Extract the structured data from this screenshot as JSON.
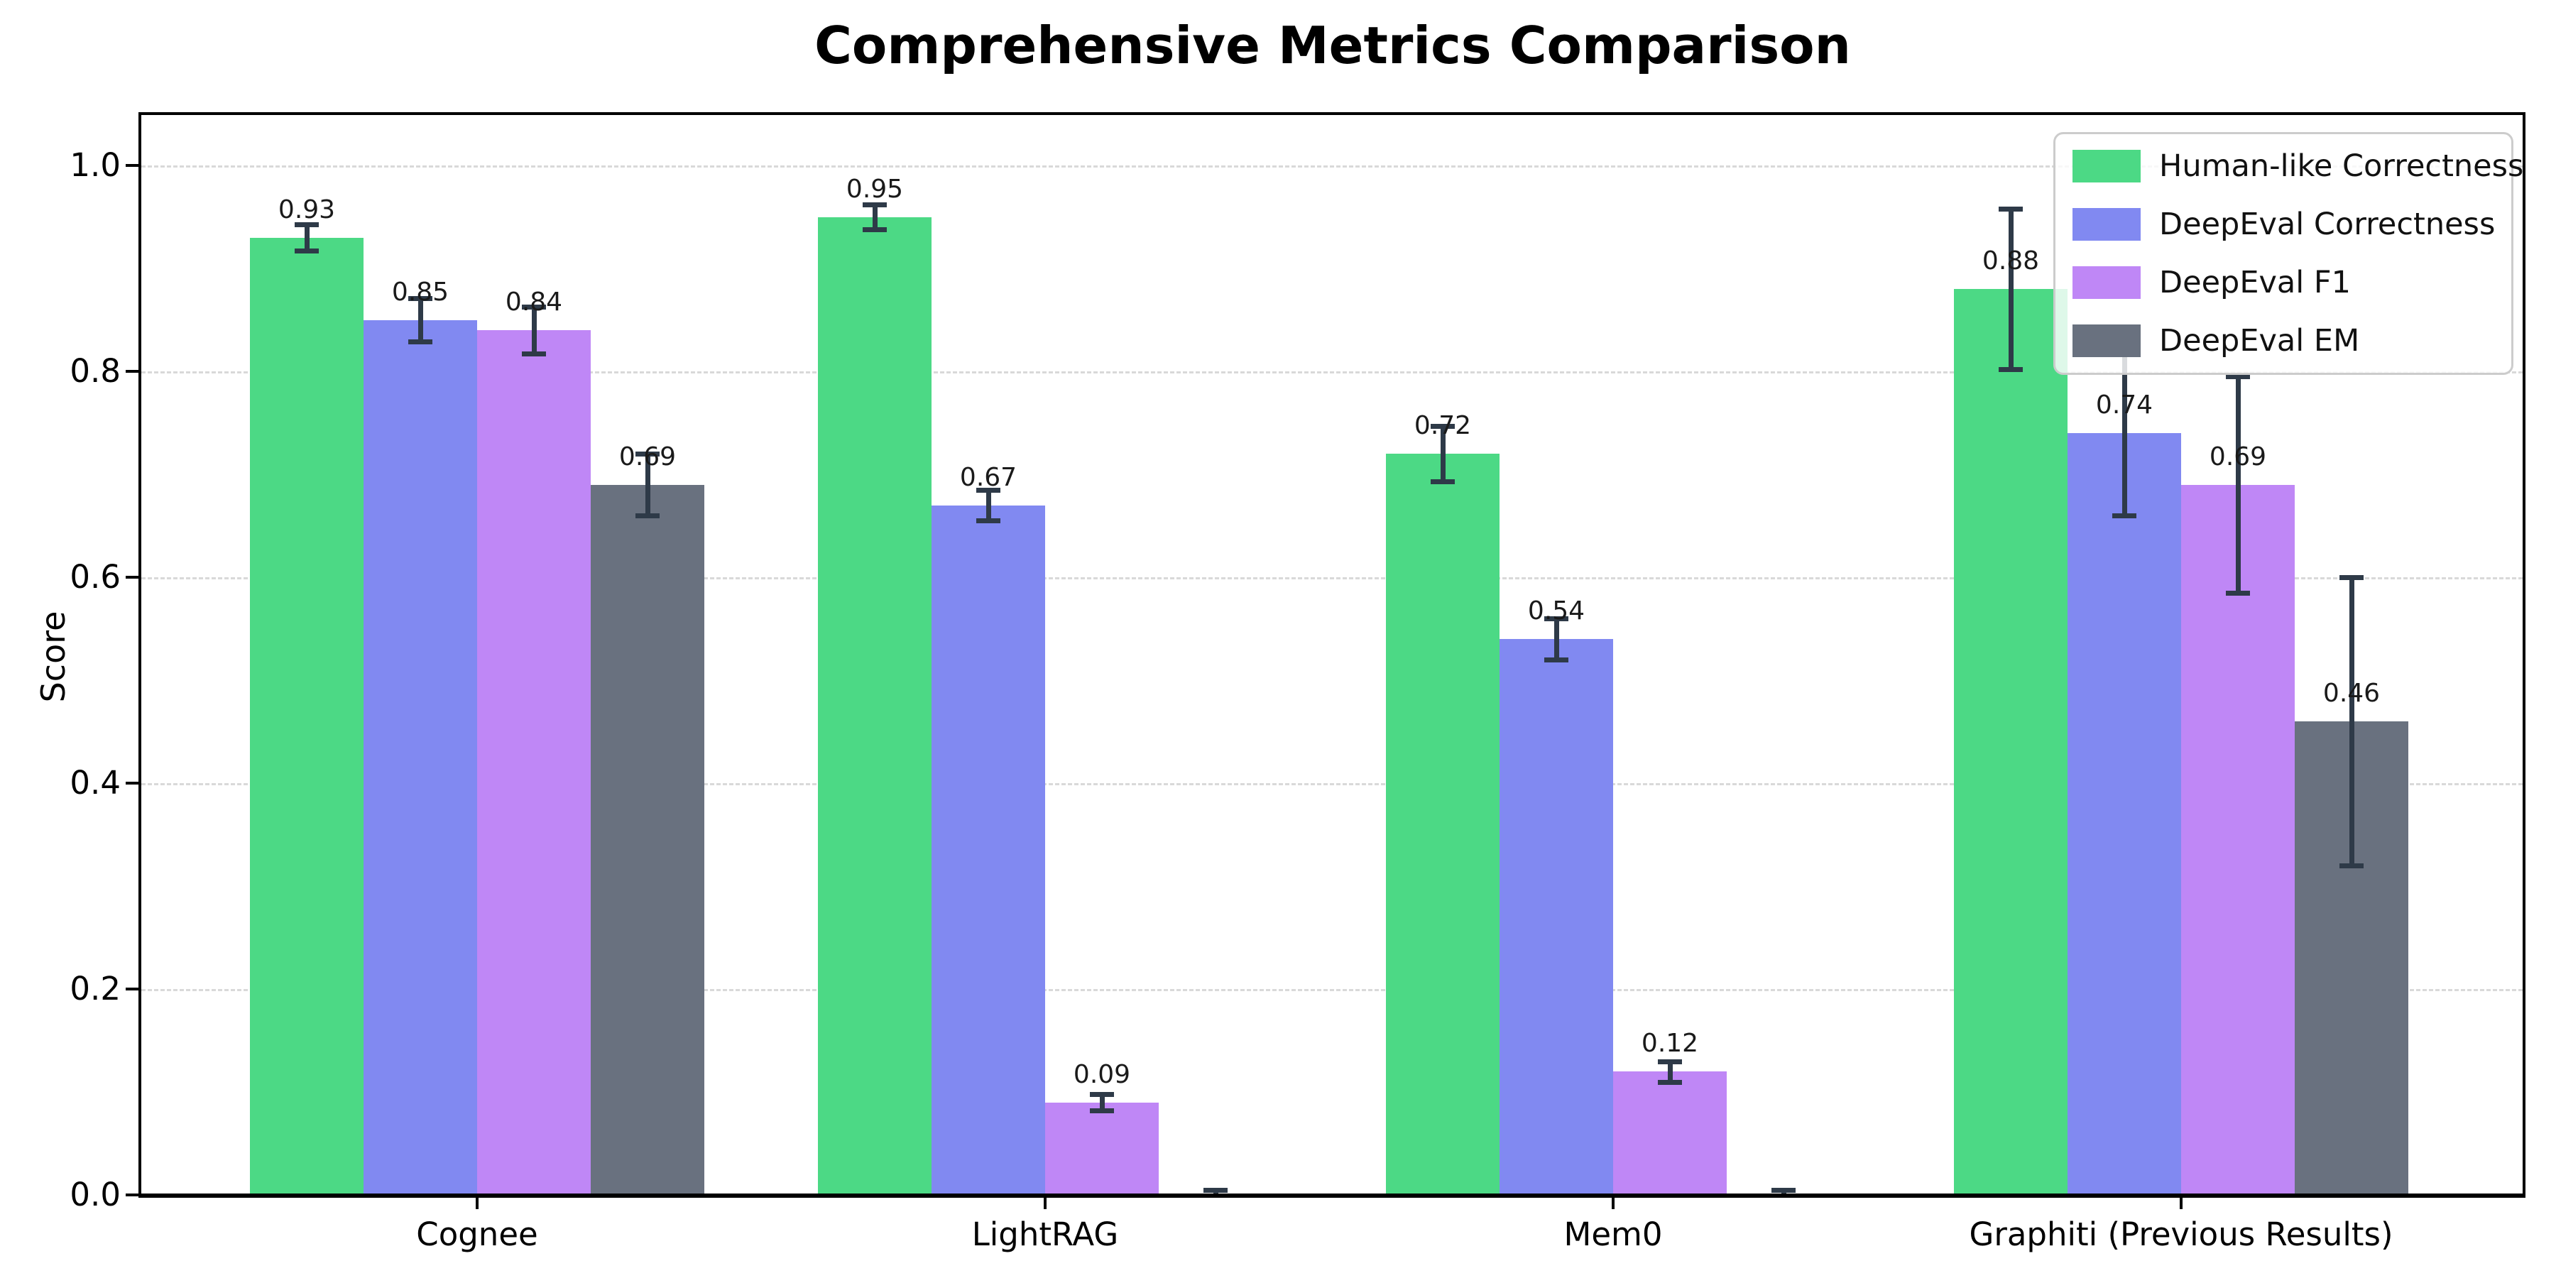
{
  "title": "Comprehensive Metrics Comparison",
  "chart_data": {
    "type": "bar",
    "title": "Comprehensive Metrics Comparison",
    "xlabel": "",
    "ylabel": "Score",
    "ylim": [
      0.0,
      1.05
    ],
    "yticks": [
      "0.0",
      "0.2",
      "0.4",
      "0.6",
      "0.8",
      "1.0"
    ],
    "ytick_values": [
      0.0,
      0.2,
      0.4,
      0.6,
      0.8,
      1.0
    ],
    "grid": "horizontal-dashed",
    "legend_position": "upper right",
    "error_bar_color": "#2e3a48",
    "categories": [
      "Cognee",
      "LightRAG",
      "Mem0",
      "Graphiti (Previous Results)"
    ],
    "series": [
      {
        "name": "Human-like Correctness",
        "color": "#4cd985",
        "values": [
          0.93,
          0.95,
          0.72,
          0.88
        ],
        "errors": [
          0.013,
          0.012,
          0.027,
          0.078
        ],
        "bar_labels": [
          "0.93",
          "0.95",
          "0.72",
          "0.88"
        ]
      },
      {
        "name": "DeepEval Correctness",
        "color": "#8189f1",
        "values": [
          0.85,
          0.67,
          0.54,
          0.74
        ],
        "errors": [
          0.021,
          0.015,
          0.02,
          0.08
        ],
        "bar_labels": [
          "0.85",
          "0.67",
          "0.54",
          "0.74"
        ]
      },
      {
        "name": "DeepEval F1",
        "color": "#bf87f6",
        "values": [
          0.84,
          0.09,
          0.12,
          0.69
        ],
        "errors": [
          0.023,
          0.008,
          0.01,
          0.105
        ],
        "bar_labels": [
          "0.84",
          "0.09",
          "0.12",
          "0.69"
        ]
      },
      {
        "name": "DeepEval EM",
        "color": "#69717f",
        "values": [
          0.69,
          0.0,
          0.0,
          0.46
        ],
        "errors": [
          0.03,
          0.005,
          0.005,
          0.14
        ],
        "bar_labels": [
          "0.69",
          null,
          null,
          "0.46"
        ]
      }
    ]
  }
}
